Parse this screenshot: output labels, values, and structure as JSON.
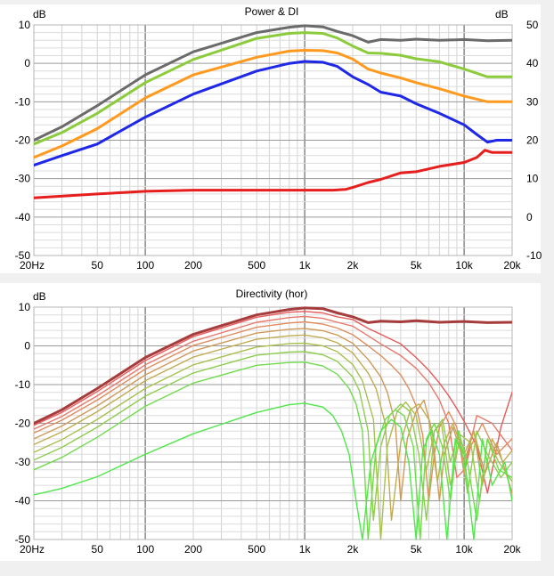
{
  "chart_data": [
    {
      "type": "line",
      "title": "Power & DI",
      "x_scale": "log",
      "xlim": [
        20,
        20000
      ],
      "x_ticks": [
        20,
        50,
        100,
        200,
        500,
        1000,
        2000,
        5000,
        10000,
        20000
      ],
      "x_tick_labels": [
        "20Hz",
        "50",
        "100",
        "200",
        "500",
        "1k",
        "2k",
        "5k",
        "10k",
        "20k"
      ],
      "ylabel": "dB",
      "ylim": [
        -50,
        10
      ],
      "y_ticks": [
        10,
        0,
        -10,
        -20,
        -30,
        -40,
        -50
      ],
      "y_tick_labels": [
        "10",
        "0",
        "-10",
        "-20",
        "-30",
        "-40",
        "-50"
      ],
      "y2label": "dB",
      "y2lim": [
        -10,
        50
      ],
      "y2_ticks": [
        50,
        40,
        30,
        20,
        10,
        0,
        -10
      ],
      "y2_tick_labels": [
        "50",
        "40",
        "30",
        "20",
        "10",
        "0",
        "-10"
      ],
      "grid": true,
      "series": [
        {
          "color": "#6b6b6b",
          "axis": "left",
          "x": [
            20,
            30,
            50,
            100,
            200,
            500,
            800,
            1000,
            1300,
            1600,
            2000,
            2500,
            3000,
            4000,
            5000,
            7000,
            10000,
            14000,
            20000
          ],
          "y": [
            -20,
            -16.5,
            -11,
            -3,
            3,
            8,
            9.4,
            9.8,
            9.5,
            8.3,
            7.2,
            5.5,
            6.2,
            6,
            6.3,
            6,
            6.2,
            5.9,
            6
          ]
        },
        {
          "color": "#8ccc3c",
          "axis": "left",
          "x": [
            20,
            30,
            50,
            100,
            200,
            500,
            800,
            1000,
            1300,
            1600,
            2000,
            2500,
            3000,
            4000,
            5000,
            7000,
            10000,
            14000,
            20000
          ],
          "y": [
            -21,
            -18,
            -13,
            -5,
            1,
            6.5,
            7.8,
            8,
            7.8,
            6.6,
            4.5,
            2.7,
            2.6,
            2.1,
            1.2,
            0.4,
            -1.5,
            -3.5,
            -3.5
          ]
        },
        {
          "color": "#ff9a1e",
          "axis": "left",
          "x": [
            20,
            30,
            50,
            100,
            200,
            500,
            800,
            1000,
            1300,
            1600,
            2000,
            2500,
            3000,
            4000,
            5000,
            7000,
            10000,
            14000,
            20000
          ],
          "y": [
            -24.5,
            -21.5,
            -17,
            -9,
            -3,
            1.6,
            3.2,
            3.4,
            3.3,
            2.7,
            1.1,
            -1.5,
            -2.5,
            -3.8,
            -5,
            -6.6,
            -8.5,
            -10,
            -10
          ]
        },
        {
          "color": "#1e28e6",
          "axis": "left",
          "x": [
            20,
            30,
            50,
            100,
            200,
            500,
            800,
            1000,
            1300,
            1600,
            2000,
            2500,
            3000,
            4000,
            5000,
            7000,
            10000,
            12000,
            14000,
            16000,
            20000
          ],
          "y": [
            -26.5,
            -24,
            -21,
            -14,
            -8,
            -2,
            0,
            0.5,
            0.3,
            -0.8,
            -3.5,
            -5.5,
            -7.5,
            -8.5,
            -10.5,
            -13,
            -16,
            -18.5,
            -20.5,
            -20,
            -20
          ]
        },
        {
          "color": "#e61e1e",
          "axis": "left",
          "x": [
            20,
            50,
            100,
            200,
            500,
            1000,
            1500,
            1800,
            2000,
            2500,
            3000,
            4000,
            5000,
            7000,
            10000,
            12000,
            13500,
            15000,
            20000
          ],
          "y": [
            -35,
            -34,
            -33.3,
            -33,
            -33,
            -33,
            -33,
            -32.8,
            -32.3,
            -31,
            -30.2,
            -28.5,
            -28.2,
            -26.8,
            -25.8,
            -24.5,
            -22.6,
            -23.2,
            -23.2
          ]
        }
      ]
    },
    {
      "type": "line",
      "title": "Directivity (hor)",
      "x_scale": "log",
      "xlim": [
        20,
        20000
      ],
      "x_ticks": [
        20,
        50,
        100,
        200,
        500,
        1000,
        2000,
        5000,
        10000,
        20000
      ],
      "x_tick_labels": [
        "20Hz",
        "50",
        "100",
        "200",
        "500",
        "1k",
        "2k",
        "5k",
        "10k",
        "20k"
      ],
      "ylabel": "dB",
      "ylim": [
        -50,
        10
      ],
      "y_ticks": [
        10,
        0,
        -10,
        -20,
        -30,
        -40,
        -50
      ],
      "y_tick_labels": [
        "10",
        "0",
        "-10",
        "-20",
        "-30",
        "-40",
        "-50"
      ],
      "grid": true,
      "series": [
        {
          "color": "#a63c3c",
          "x": [
            20,
            30,
            50,
            100,
            200,
            500,
            800,
            1000,
            1300,
            1600,
            2000,
            2500,
            3000,
            4000,
            5000,
            7000,
            10000,
            14000,
            20000
          ],
          "y": [
            -20,
            -16.5,
            -11,
            -3,
            3,
            8,
            9.4,
            9.8,
            9.6,
            8.5,
            7.5,
            6,
            6.4,
            6.2,
            6.5,
            6.1,
            6.3,
            6,
            6.1
          ]
        },
        {
          "color": "#e65a5a",
          "x": [
            20,
            30,
            50,
            100,
            200,
            500,
            800,
            1000,
            1300,
            1600,
            2000,
            2500,
            3000,
            4000,
            5000,
            6000,
            7000,
            8000,
            9000,
            10000,
            11000,
            12000,
            14000,
            17000,
            20000
          ],
          "y": [
            -20.5,
            -17.2,
            -11.8,
            -3.8,
            2.4,
            7.4,
            8.7,
            8.9,
            8.5,
            7.5,
            6.8,
            4.5,
            3,
            0.5,
            -3,
            -6.3,
            -9.6,
            -12.9,
            -16.2,
            -19.5,
            -22.8,
            -26,
            -38,
            -21,
            -12
          ]
        },
        {
          "color": "#e8786a",
          "x": [
            20,
            30,
            50,
            100,
            200,
            500,
            800,
            1000,
            1300,
            1600,
            2000,
            2500,
            3000,
            4000,
            5000,
            6000,
            7000,
            8000,
            9000,
            10000,
            12000,
            15000,
            20000
          ],
          "y": [
            -21.5,
            -18.2,
            -12.9,
            -4.9,
            1.2,
            6.1,
            7.3,
            7.6,
            7.1,
            6.1,
            5.1,
            2.6,
            0.5,
            -2.5,
            -5.8,
            -9.5,
            -14,
            -20,
            -34,
            -32,
            -18,
            -20,
            -27
          ]
        },
        {
          "color": "#e08c5c",
          "x": [
            20,
            30,
            50,
            100,
            200,
            500,
            800,
            1000,
            1300,
            1600,
            2000,
            2500,
            3000,
            3500,
            4000,
            4500,
            5000,
            5500,
            6000,
            6500,
            7000,
            8000,
            9000,
            10000,
            11000,
            13000,
            16000,
            20000
          ],
          "y": [
            -22.5,
            -19.2,
            -14,
            -6,
            0.1,
            4.8,
            5.9,
            6.2,
            5.6,
            4.6,
            2.9,
            0,
            -2.5,
            -5,
            -7.5,
            -11,
            -15.5,
            -23,
            -40,
            -28,
            -21,
            -17,
            -21,
            -33,
            -26,
            -20,
            -28,
            -24
          ]
        },
        {
          "color": "#d09a58",
          "x": [
            20,
            30,
            50,
            100,
            200,
            500,
            800,
            1000,
            1300,
            1600,
            2000,
            2500,
            3000,
            3300,
            3700,
            4000,
            4400,
            5000,
            5600,
            6300,
            7000,
            7500,
            8500,
            10000,
            11500,
            13500,
            16000,
            20000
          ],
          "y": [
            -24,
            -20.7,
            -15.5,
            -7.5,
            -1.3,
            3.3,
            4.3,
            4.5,
            3.9,
            2.8,
            0.7,
            -3.5,
            -8,
            -12,
            -20,
            -40,
            -24,
            -17,
            -14,
            -22,
            -40,
            -28,
            -21,
            -30,
            -22,
            -33,
            -25,
            -38
          ]
        },
        {
          "color": "#c0ac50",
          "x": [
            20,
            30,
            50,
            100,
            200,
            500,
            800,
            1000,
            1300,
            1600,
            2000,
            2500,
            2800,
            3200,
            3500,
            4000,
            4600,
            5200,
            6000,
            6800,
            7500,
            8500,
            10000,
            11500,
            13000,
            15000,
            17500,
            20000
          ],
          "y": [
            -25.5,
            -22.2,
            -17,
            -9,
            -2.9,
            1.7,
            2.6,
            2.8,
            2.1,
            0.8,
            -1.8,
            -7,
            -11,
            -20,
            -45,
            -25,
            -16.5,
            -15,
            -19,
            -35,
            -25,
            -20,
            -28,
            -22,
            -36,
            -24,
            -30,
            -27
          ]
        },
        {
          "color": "#a8c050",
          "x": [
            20,
            30,
            50,
            100,
            200,
            500,
            800,
            1000,
            1300,
            1600,
            2000,
            2300,
            2700,
            3000,
            3300,
            3800,
            4300,
            5000,
            5800,
            6500,
            7200,
            8200,
            9500,
            11000,
            12500,
            14000,
            16500,
            20000
          ],
          "y": [
            -27.5,
            -24.2,
            -19,
            -11,
            -4.9,
            -0.3,
            0.6,
            0.7,
            0,
            -1.5,
            -4.8,
            -9,
            -19,
            -50,
            -26,
            -17,
            -14.5,
            -18,
            -32,
            -22,
            -20,
            -36,
            -23,
            -25,
            -40,
            -24,
            -30,
            -35
          ]
        },
        {
          "color": "#90cc50",
          "x": [
            20,
            30,
            50,
            100,
            200,
            500,
            800,
            1000,
            1300,
            1600,
            2000,
            2200,
            2500,
            2700,
            3000,
            3400,
            4000,
            4600,
            5200,
            5800,
            6500,
            7300,
            8200,
            9300,
            10500,
            12000,
            14000,
            17000,
            20000
          ],
          "y": [
            -29.5,
            -26.2,
            -21,
            -13,
            -7,
            -2.4,
            -1.6,
            -1.5,
            -2.3,
            -4,
            -8,
            -11.5,
            -22,
            -45,
            -26,
            -18,
            -15,
            -17,
            -28,
            -45,
            -22,
            -19,
            -30,
            -22,
            -38,
            -22,
            -28,
            -34,
            -30
          ]
        },
        {
          "color": "#70dc4c",
          "x": [
            20,
            30,
            50,
            100,
            200,
            500,
            800,
            1000,
            1300,
            1600,
            1900,
            2100,
            2300,
            2500,
            2800,
            3200,
            3700,
            4200,
            4800,
            5300,
            5800,
            6500,
            7300,
            8200,
            9200,
            10500,
            12000,
            14000,
            16500,
            20000
          ],
          "y": [
            -32,
            -28.8,
            -23.6,
            -15.6,
            -9.6,
            -5,
            -4.3,
            -4.2,
            -5.2,
            -7.3,
            -11,
            -15,
            -22,
            -50,
            -26,
            -19,
            -16.5,
            -18,
            -26,
            -50,
            -24,
            -20,
            -26,
            -40,
            -22,
            -30,
            -45,
            -24,
            -32,
            -34
          ]
        },
        {
          "color": "#4ee84a",
          "x": [
            20,
            30,
            50,
            100,
            200,
            500,
            800,
            1000,
            1300,
            1500,
            1700,
            1900,
            2100,
            2300,
            2600,
            3000,
            3500,
            4000,
            4500,
            5000,
            5500,
            6200,
            7000,
            7800,
            8800,
            10000,
            11500,
            13000,
            15000,
            18000,
            20000
          ],
          "y": [
            -38.5,
            -36.8,
            -33.8,
            -28,
            -22.7,
            -17.2,
            -15.2,
            -14.8,
            -15.8,
            -18,
            -22,
            -28,
            -40,
            -50,
            -30,
            -22,
            -19,
            -21,
            -30,
            -50,
            -27,
            -22,
            -28,
            -50,
            -24,
            -28,
            -50,
            -24,
            -36,
            -30,
            -40
          ]
        }
      ]
    }
  ]
}
